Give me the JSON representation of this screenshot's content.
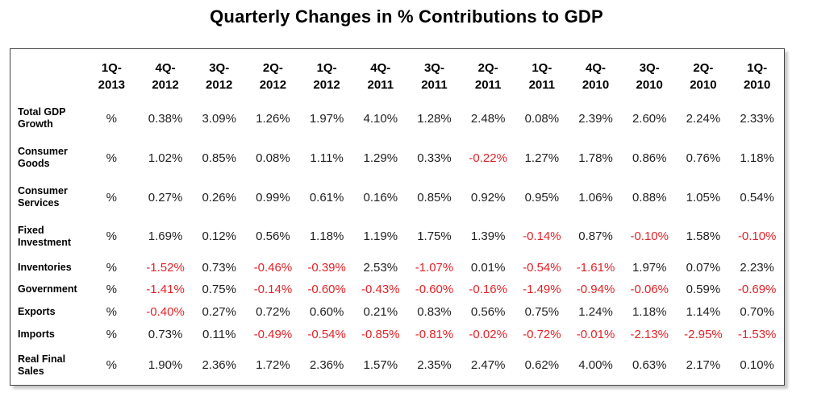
{
  "title": "Quarterly Changes in % Contributions to GDP",
  "colors": {
    "positive_value": "#1f1f1f",
    "negative_value": "#e32227",
    "header_text": "#000000",
    "table_border": "#454545",
    "background": "#ffffff"
  },
  "chart_data": {
    "type": "table",
    "title": "Quarterly Changes in % Contributions to GDP",
    "unit": "%",
    "columns": [
      "1Q-2013",
      "4Q-2012",
      "3Q-2012",
      "2Q-2012",
      "1Q-2012",
      "4Q-2011",
      "3Q-2011",
      "2Q-2011",
      "1Q-2011",
      "4Q-2010",
      "3Q-2010",
      "2Q-2010",
      "1Q-2010"
    ],
    "rows": [
      {
        "label": "Total GDP Growth",
        "values": [
          "%",
          "0.38%",
          "3.09%",
          "1.26%",
          "1.97%",
          "4.10%",
          "1.28%",
          "2.48%",
          "0.08%",
          "2.39%",
          "2.60%",
          "2.24%",
          "2.33%"
        ]
      },
      {
        "label": "Consumer Goods",
        "values": [
          "%",
          "1.02%",
          "0.85%",
          "0.08%",
          "1.11%",
          "1.29%",
          "0.33%",
          "-0.22%",
          "1.27%",
          "1.78%",
          "0.86%",
          "0.76%",
          "1.18%"
        ]
      },
      {
        "label": "Consumer Services",
        "values": [
          "%",
          "0.27%",
          "0.26%",
          "0.99%",
          "0.61%",
          "0.16%",
          "0.85%",
          "0.92%",
          "0.95%",
          "1.06%",
          "0.88%",
          "1.05%",
          "0.54%"
        ]
      },
      {
        "label": "Fixed Investment",
        "values": [
          "%",
          "1.69%",
          "0.12%",
          "0.56%",
          "1.18%",
          "1.19%",
          "1.75%",
          "1.39%",
          "-0.14%",
          "0.87%",
          "-0.10%",
          "1.58%",
          "-0.10%"
        ]
      },
      {
        "label": "Inventories",
        "values": [
          "%",
          "-1.52%",
          "0.73%",
          "-0.46%",
          "-0.39%",
          "2.53%",
          "-1.07%",
          "0.01%",
          "-0.54%",
          "-1.61%",
          "1.97%",
          "0.07%",
          "2.23%"
        ]
      },
      {
        "label": "Government",
        "values": [
          "%",
          "-1.41%",
          "0.75%",
          "-0.14%",
          "-0.60%",
          "-0.43%",
          "-0.60%",
          "-0.16%",
          "-1.49%",
          "-0.94%",
          "-0.06%",
          "0.59%",
          "-0.69%"
        ]
      },
      {
        "label": "Exports",
        "values": [
          "%",
          "-0.40%",
          "0.27%",
          "0.72%",
          "0.60%",
          "0.21%",
          "0.83%",
          "0.56%",
          "0.75%",
          "1.24%",
          "1.18%",
          "1.14%",
          "0.70%"
        ]
      },
      {
        "label": "Imports",
        "values": [
          "%",
          "0.73%",
          "0.11%",
          "-0.49%",
          "-0.54%",
          "-0.85%",
          "-0.81%",
          "-0.02%",
          "-0.72%",
          "-0.01%",
          "-2.13%",
          "-2.95%",
          "-1.53%"
        ]
      },
      {
        "label": "Real Final Sales",
        "values": [
          "%",
          "1.90%",
          "2.36%",
          "1.72%",
          "2.36%",
          "1.57%",
          "2.35%",
          "2.47%",
          "0.62%",
          "4.00%",
          "0.63%",
          "2.17%",
          "0.10%"
        ]
      }
    ]
  }
}
